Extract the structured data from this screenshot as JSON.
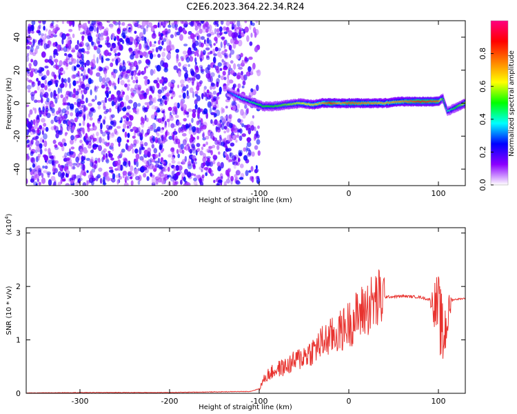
{
  "title": "C2E6.2023.364.22.34.R24",
  "chart_data": [
    {
      "type": "heatmap",
      "xlabel": "Height of straight line (km)",
      "ylabel": "Frequency (Hz)",
      "xlim": [
        -360,
        130
      ],
      "ylim": [
        -50,
        50
      ],
      "x_ticks": [
        -300,
        -200,
        -100,
        0,
        100
      ],
      "y_ticks": [
        -40,
        -20,
        0,
        20,
        40
      ],
      "colorbar": {
        "label": "Normalized spectral amplitude",
        "range": [
          0,
          1
        ],
        "ticks": [
          "0.0",
          "0.2",
          "0.4",
          "0.6",
          "0.8"
        ],
        "colormap": [
          "#ffffff",
          "#8b00ff",
          "#0000ff",
          "#00ffff",
          "#00ff00",
          "#ffff00",
          "#ff8000",
          "#ff0000",
          "#ff0080"
        ]
      },
      "noise_region": {
        "x": [
          -360,
          -100
        ],
        "amplitude": 0.15
      },
      "signal_trace": {
        "x": [
          -135,
          -120,
          -105,
          -95,
          -85,
          -70,
          -55,
          -40,
          -30,
          -20,
          -10,
          0,
          20,
          40,
          60,
          80,
          100,
          105,
          110,
          130
        ],
        "y": [
          7,
          3,
          0,
          -2,
          -2,
          -1,
          0,
          -1,
          0,
          0,
          0,
          0,
          0,
          0,
          1,
          1,
          1,
          3,
          -5,
          0
        ],
        "amplitude": [
          0.25,
          0.4,
          0.45,
          0.5,
          0.5,
          0.55,
          0.6,
          0.65,
          0.7,
          0.85,
          0.7,
          0.8,
          0.75,
          0.7,
          0.75,
          0.85,
          0.8,
          0.5,
          0.4,
          0.6
        ]
      },
      "grid": false,
      "legend": "right"
    },
    {
      "type": "line",
      "xlabel": "Height of straight line (km)",
      "ylabel": "SNR (10 * v/v)",
      "yscale_label": "(x10",
      "yscale_exp": "4",
      "yscale_close": ")",
      "xlim": [
        -360,
        130
      ],
      "ylim": [
        0,
        3.1
      ],
      "x_ticks": [
        -300,
        -200,
        -100,
        0,
        100
      ],
      "y_ticks": [
        0,
        1,
        2,
        3
      ],
      "color": "#e8332f",
      "series": [
        {
          "x": [
            -360,
            -300,
            -200,
            -110,
            -100,
            -95,
            -90,
            -80,
            -70,
            -60,
            -50,
            -40,
            -30,
            -20,
            -10,
            0,
            10,
            20,
            30,
            40,
            60,
            80,
            90,
            100,
            105,
            110,
            115,
            130
          ],
          "y": [
            0.0,
            0.01,
            0.01,
            0.03,
            0.08,
            0.25,
            0.35,
            0.45,
            0.5,
            0.6,
            0.7,
            0.8,
            0.95,
            1.05,
            1.15,
            1.3,
            1.45,
            1.6,
            1.72,
            1.8,
            1.82,
            1.8,
            1.75,
            1.6,
            1.0,
            1.4,
            1.75,
            1.78
          ]
        }
      ],
      "grid": false
    }
  ]
}
